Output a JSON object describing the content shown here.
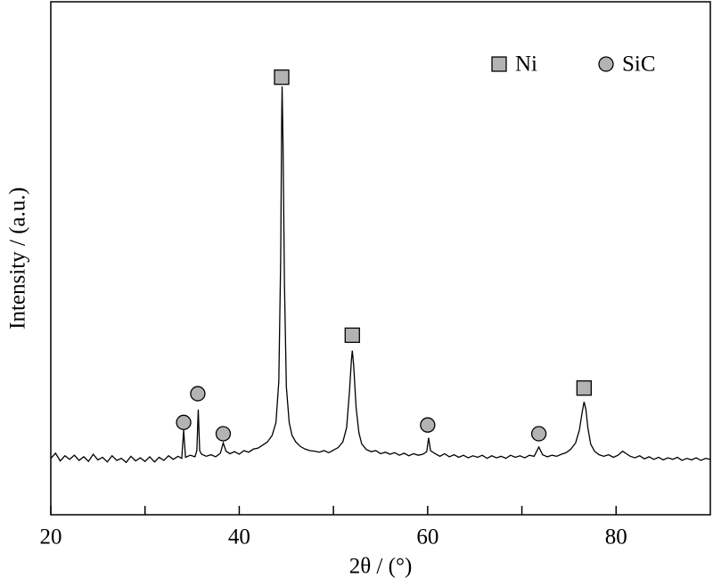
{
  "chart_data": {
    "type": "line",
    "xlabel": "2θ / (°)",
    "ylabel": "Intensity / (a.u.)",
    "xlim": [
      20,
      90
    ],
    "xticks": [
      20,
      40,
      60,
      80
    ],
    "xminor_ticks": [
      30,
      50,
      70
    ],
    "ylim": [
      0,
      100
    ],
    "legend": "upper right",
    "line": {
      "color": "#000000",
      "x": [
        20,
        20.5,
        21,
        21.5,
        22,
        22.5,
        23,
        23.5,
        24,
        24.5,
        25,
        25.5,
        26,
        26.5,
        27,
        27.5,
        28,
        28.5,
        29,
        29.5,
        30,
        30.5,
        31,
        31.5,
        32,
        32.5,
        33,
        33.5,
        33.9,
        34.1,
        34.3,
        34.8,
        35.3,
        35.5,
        35.65,
        35.8,
        36,
        36.5,
        37,
        37.5,
        38,
        38.3,
        38.6,
        39,
        39.5,
        40,
        40.5,
        41,
        41.5,
        42,
        42.5,
        43,
        43.5,
        43.9,
        44.2,
        44.4,
        44.5,
        44.55,
        44.65,
        44.8,
        45,
        45.3,
        45.6,
        46,
        46.5,
        47,
        47.5,
        48,
        48.5,
        49,
        49.5,
        50,
        50.5,
        51,
        51.4,
        51.7,
        51.9,
        52,
        52.15,
        52.4,
        52.7,
        53,
        53.5,
        54,
        54.5,
        55,
        55.5,
        56,
        56.5,
        57,
        57.5,
        58,
        58.5,
        59,
        59.5,
        59.9,
        60.1,
        60.3,
        60.8,
        61.3,
        61.8,
        62.3,
        62.8,
        63.3,
        63.8,
        64.3,
        64.8,
        65.3,
        65.8,
        66.3,
        66.8,
        67.3,
        67.8,
        68.3,
        68.8,
        69.3,
        69.8,
        70.3,
        70.8,
        71.3,
        71.8,
        72.2,
        72.7,
        73.2,
        73.7,
        74.2,
        74.7,
        75.2,
        75.7,
        76.1,
        76.4,
        76.6,
        76.8,
        77,
        77.3,
        77.7,
        78.2,
        78.7,
        79.2,
        79.7,
        80.2,
        80.7,
        81,
        81.5,
        82,
        82.5,
        83,
        83.5,
        84,
        84.5,
        85,
        85.5,
        86,
        86.5,
        87,
        87.5,
        88,
        88.5,
        89,
        89.5,
        90
      ],
      "values": [
        11,
        12,
        10.5,
        11.5,
        10.8,
        11.6,
        10.6,
        11.3,
        10.4,
        11.8,
        10.7,
        11.2,
        10.3,
        11.5,
        10.6,
        11,
        10.2,
        11.4,
        10.5,
        11.1,
        10.4,
        11.3,
        10.3,
        11.2,
        10.6,
        11.5,
        10.8,
        11.4,
        11,
        16.5,
        11.2,
        11.6,
        11.3,
        12.5,
        20.5,
        12.5,
        11.8,
        11.4,
        11.7,
        11.3,
        12,
        14,
        12.4,
        11.9,
        12.3,
        11.8,
        12.5,
        12.2,
        12.8,
        13,
        13.6,
        14.2,
        15.5,
        18,
        26,
        50,
        76,
        83.5,
        72,
        45,
        25,
        18,
        15.5,
        14.2,
        13.3,
        12.8,
        12.5,
        12.4,
        12.2,
        12.5,
        12.1,
        12.6,
        13.1,
        14.2,
        17,
        24,
        30,
        32,
        29,
        21,
        16,
        13.8,
        12.7,
        12.3,
        12.5,
        11.9,
        12.2,
        11.8,
        12.1,
        11.6,
        12,
        11.5,
        11.9,
        11.6,
        11.8,
        12.3,
        15,
        12.5,
        11.9,
        11.4,
        11.9,
        11.3,
        11.7,
        11.2,
        11.6,
        11.1,
        11.5,
        11.2,
        11.6,
        11,
        11.5,
        11.1,
        11.4,
        11,
        11.6,
        11.2,
        11.5,
        11.1,
        11.6,
        11.4,
        13.2,
        11.7,
        11.3,
        11.6,
        11.4,
        11.8,
        12.1,
        12.8,
        14,
        16.5,
        20,
        22,
        20.5,
        17,
        13.8,
        12.4,
        11.7,
        11.4,
        11.7,
        11.2,
        11.6,
        12.4,
        12,
        11.4,
        11.1,
        11.5,
        10.9,
        11.3,
        10.8,
        11.2,
        10.7,
        11.1,
        10.8,
        11.2,
        10.6,
        11,
        10.7,
        11.1,
        10.6,
        11,
        10.8
      ]
    },
    "series": [
      {
        "name": "Ni",
        "marker": "square",
        "color": "#b3b3b3",
        "x": [
          44.5,
          52,
          76.6
        ],
        "values": [
          85.3,
          35,
          24.7
        ]
      },
      {
        "name": "SiC",
        "marker": "circle",
        "color": "#b3b3b3",
        "x": [
          34.1,
          35.6,
          38.3,
          60,
          71.8
        ],
        "values": [
          18,
          23.6,
          15.8,
          17.5,
          15.8
        ]
      }
    ]
  }
}
